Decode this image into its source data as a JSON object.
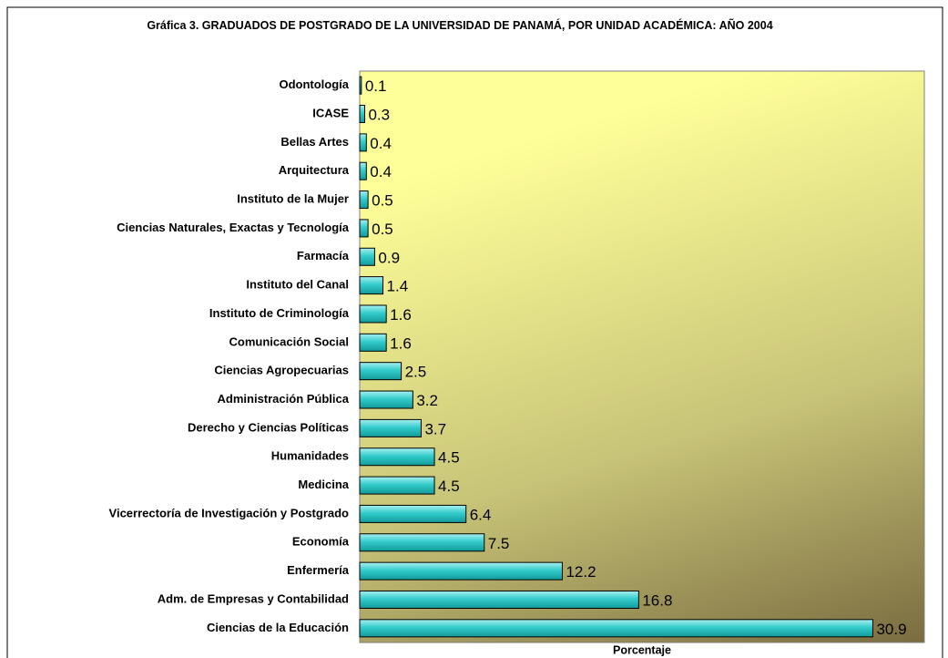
{
  "chart_data": {
    "type": "hbar",
    "title": "Gráfica 3. GRADUADOS DE POSTGRADO DE LA UNIVERSIDAD DE PANAMÁ, POR UNIDAD ACADÉMICA: AÑO 2004",
    "x_label": "Porcentaje",
    "categories": [
      "Odontología",
      "ICASE",
      "Bellas Artes",
      "Arquitectura",
      "Instituto de la Mujer",
      "Ciencias Naturales, Exactas y Tecnología",
      "Farmacía",
      "Instituto del Canal",
      "Instituto de Criminología",
      "Comunicación Social",
      "Ciencias Agropecuarias",
      "Administración Pública",
      "Derecho y Ciencias Políticas",
      "Humanidades",
      "Medicina",
      "Vicerrectoría de Investigación y Postgrado",
      "Economía",
      "Enfermería",
      "Adm. de Empresas y Contabilidad",
      "Ciencias de la Educación"
    ],
    "values": [
      0.1,
      0.3,
      0.4,
      0.4,
      0.5,
      0.5,
      0.9,
      1.4,
      1.6,
      1.6,
      2.5,
      3.2,
      3.7,
      4.5,
      4.5,
      6.4,
      7.5,
      12.2,
      16.8,
      30.9
    ],
    "color": "#33cccc",
    "xlim": [
      0,
      34
    ]
  }
}
